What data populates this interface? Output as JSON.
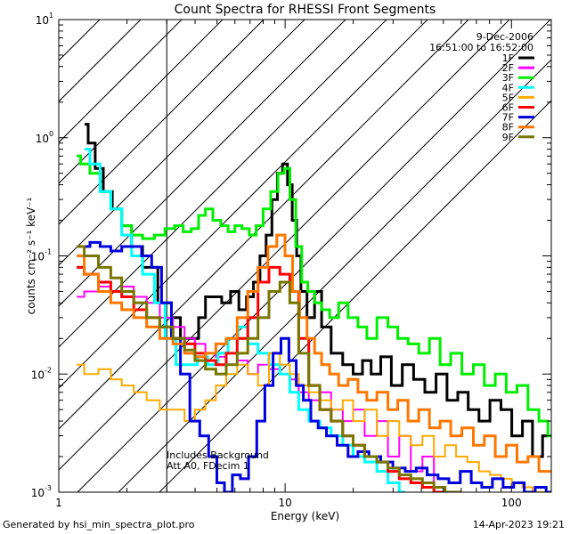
{
  "chart_data": {
    "type": "line",
    "title": "Count Spectra for RHESSI Front Segments",
    "xlabel": "Energy (keV)",
    "ylabel": "counts cm⁻² s⁻¹ keV⁻¹",
    "xscale": "log",
    "yscale": "log",
    "xlim": [
      1,
      150
    ],
    "ylim": [
      0.001,
      10
    ],
    "x_ticks": [
      {
        "value": 1,
        "label": "1"
      },
      {
        "value": 10,
        "label": "10"
      },
      {
        "value": 100,
        "label": "100"
      }
    ],
    "y_ticks": [
      {
        "value": 10,
        "label": "10",
        "exp": "1"
      },
      {
        "value": 1,
        "label": "10",
        "exp": "0"
      },
      {
        "value": 0.1,
        "label": "10",
        "exp": "-1"
      },
      {
        "value": 0.01,
        "label": "10",
        "exp": "-2"
      },
      {
        "value": 0.001,
        "label": "10",
        "exp": "-3"
      }
    ],
    "hatched_region": {
      "x_from": 1,
      "x_to": 3
    },
    "date": "9-Dec-2006",
    "time_range": "16:51:00 to 16:52:00",
    "annotation": [
      "Includes Background",
      "Att A0, FDecim 1"
    ],
    "legend_position": "top-right",
    "series": [
      {
        "name": "1F",
        "color": "#000000",
        "width": 3,
        "x": [
          1.3,
          1.4,
          1.5,
          1.65,
          1.8,
          2.0,
          2.2,
          2.5,
          3,
          3.3,
          3.6,
          4,
          4.3,
          4.6,
          5,
          5.5,
          6,
          6.5,
          7,
          7.5,
          8,
          8.5,
          9,
          9.5,
          10,
          10.5,
          11,
          11.5,
          12,
          13,
          14,
          15,
          17,
          19,
          21,
          23,
          25,
          28,
          31,
          35,
          39,
          44,
          49,
          55,
          61,
          68,
          76,
          85,
          95,
          106,
          118,
          130,
          145
        ],
        "y": [
          1.3,
          0.9,
          0.55,
          0.35,
          0.25,
          0.18,
          0.12,
          0.08,
          0.04,
          0.03,
          0.02,
          0.02,
          0.03,
          0.045,
          0.045,
          0.04,
          0.05,
          0.035,
          0.045,
          0.06,
          0.1,
          0.15,
          0.3,
          0.5,
          0.6,
          0.4,
          0.2,
          0.1,
          0.05,
          0.03,
          0.05,
          0.025,
          0.015,
          0.012,
          0.01,
          0.013,
          0.01,
          0.014,
          0.008,
          0.012,
          0.009,
          0.007,
          0.01,
          0.006,
          0.007,
          0.005,
          0.004,
          0.006,
          0.005,
          0.003,
          0.004,
          0.002,
          0.003
        ]
      },
      {
        "name": "2F",
        "color": "#ff00ff",
        "width": 2,
        "x": [
          1.2,
          1.4,
          1.6,
          1.8,
          2.0,
          2.3,
          2.6,
          3,
          3.4,
          3.8,
          4.2,
          4.7,
          5.2,
          5.8,
          6.5,
          7.2,
          8,
          9,
          10,
          11,
          12,
          13.5,
          15,
          17,
          19,
          21,
          24,
          27,
          30,
          34,
          38,
          43,
          48
        ],
        "y": [
          0.045,
          0.05,
          0.055,
          0.05,
          0.055,
          0.045,
          0.04,
          0.03,
          0.025,
          0.02,
          0.018,
          0.015,
          0.014,
          0.012,
          0.013,
          0.01,
          0.012,
          0.011,
          0.01,
          0.009,
          0.007,
          0.006,
          0.007,
          0.005,
          0.004,
          0.005,
          0.003,
          0.004,
          0.002,
          0.003,
          0.0015,
          0.002,
          0.001
        ]
      },
      {
        "name": "3F",
        "color": "#00ee00",
        "width": 3,
        "x": [
          1.2,
          1.3,
          1.45,
          1.6,
          1.8,
          2.0,
          2.2,
          2.5,
          2.8,
          3.1,
          3.4,
          3.7,
          4,
          4.3,
          4.6,
          5,
          5.4,
          5.8,
          6.2,
          6.7,
          7.2,
          7.7,
          8.3,
          9,
          9.6,
          10.2,
          10.8,
          11.5,
          12.2,
          13,
          14,
          15,
          16.5,
          18,
          20,
          22,
          24,
          27,
          30,
          33,
          37,
          41,
          46,
          51,
          57,
          64,
          72,
          80,
          90,
          100,
          112,
          125,
          140,
          150
        ],
        "y": [
          0.7,
          0.6,
          0.5,
          0.35,
          0.25,
          0.18,
          0.15,
          0.14,
          0.15,
          0.17,
          0.18,
          0.16,
          0.17,
          0.22,
          0.25,
          0.2,
          0.18,
          0.16,
          0.18,
          0.17,
          0.15,
          0.18,
          0.25,
          0.35,
          0.5,
          0.55,
          0.3,
          0.12,
          0.06,
          0.05,
          0.04,
          0.035,
          0.03,
          0.04,
          0.03,
          0.025,
          0.02,
          0.03,
          0.025,
          0.02,
          0.018,
          0.015,
          0.02,
          0.012,
          0.015,
          0.01,
          0.012,
          0.008,
          0.01,
          0.007,
          0.008,
          0.005,
          0.004,
          0.003
        ]
      },
      {
        "name": "4F",
        "color": "#00ffff",
        "width": 3,
        "x": [
          1.3,
          1.45,
          1.6,
          1.8,
          2.0,
          2.2,
          2.5,
          2.8,
          3.1,
          3.5,
          3.9,
          4.3,
          4.8,
          5.3,
          5.9,
          6.5,
          7.2,
          8,
          9,
          10,
          11,
          12,
          13.5,
          15,
          17,
          19,
          21,
          24,
          27,
          30,
          34
        ],
        "y": [
          0.8,
          0.6,
          0.35,
          0.25,
          0.15,
          0.1,
          0.07,
          0.04,
          0.02,
          0.012,
          0.012,
          0.014,
          0.012,
          0.015,
          0.02,
          0.025,
          0.018,
          0.015,
          0.012,
          0.01,
          0.007,
          0.005,
          0.004,
          0.0035,
          0.003,
          0.0025,
          0.002,
          0.0018,
          0.0015,
          0.0012,
          0.001
        ]
      },
      {
        "name": "5F",
        "color": "#ffaa00",
        "width": 2,
        "x": [
          1.2,
          1.4,
          1.6,
          1.8,
          2.0,
          2.3,
          2.6,
          3,
          3.4,
          3.8,
          4.2,
          4.7,
          5.2,
          5.8,
          6.5,
          7.2,
          8,
          9,
          10,
          11,
          12,
          13.5,
          15,
          17,
          19,
          21,
          24,
          27,
          30,
          34,
          38,
          43,
          48,
          54,
          60,
          68,
          76,
          85,
          95,
          106,
          118,
          130,
          145
        ],
        "y": [
          0.012,
          0.01,
          0.011,
          0.009,
          0.008,
          0.007,
          0.006,
          0.005,
          0.005,
          0.004,
          0.005,
          0.006,
          0.008,
          0.01,
          0.012,
          0.01,
          0.008,
          0.015,
          0.012,
          0.01,
          0.008,
          0.007,
          0.006,
          0.005,
          0.006,
          0.004,
          0.005,
          0.003,
          0.004,
          0.003,
          0.0025,
          0.003,
          0.002,
          0.0025,
          0.002,
          0.0018,
          0.0015,
          0.0014,
          0.0013,
          0.0012,
          0.0011,
          0.001,
          0.001
        ]
      },
      {
        "name": "6F",
        "color": "#ff0000",
        "width": 3,
        "x": [
          1.2,
          1.4,
          1.6,
          1.8,
          2.0,
          2.3,
          2.6,
          3,
          3.4,
          3.8,
          4.2,
          4.7,
          5.2,
          5.8,
          6.5,
          7.2,
          8,
          9,
          10,
          11,
          12,
          13.5,
          15,
          17,
          19,
          21,
          24,
          27,
          30,
          34,
          38,
          43,
          48,
          54,
          60
        ],
        "y": [
          0.08,
          0.07,
          0.06,
          0.05,
          0.045,
          0.035,
          0.03,
          0.025,
          0.02,
          0.018,
          0.015,
          0.013,
          0.012,
          0.015,
          0.02,
          0.03,
          0.06,
          0.08,
          0.07,
          0.05,
          0.02,
          0.008,
          0.005,
          0.004,
          0.003,
          0.0025,
          0.002,
          0.0018,
          0.0015,
          0.0013,
          0.0012,
          0.0011,
          0.001,
          0.001,
          0.001
        ]
      },
      {
        "name": "7F",
        "color": "#0000dd",
        "width": 3,
        "x": [
          1.2,
          1.3,
          1.45,
          1.6,
          1.8,
          2.0,
          2.2,
          2.45,
          2.7,
          3,
          3.3,
          3.6,
          4,
          4.4,
          4.8,
          5.2,
          5.6,
          6.1,
          6.6,
          7.2,
          7.8,
          8.5,
          9.2,
          10,
          10.8,
          11.6,
          12.5,
          13.5,
          14.5,
          16,
          18,
          20,
          22,
          25,
          28,
          32,
          36,
          40,
          45,
          50,
          56,
          63,
          70,
          78,
          87,
          97,
          108,
          120,
          135,
          150
        ],
        "y": [
          0.12,
          0.12,
          0.13,
          0.12,
          0.11,
          0.12,
          0.12,
          0.1,
          0.08,
          0.04,
          0.02,
          0.01,
          0.004,
          0.003,
          0.002,
          0.0012,
          0.001,
          0.0014,
          0.0013,
          0.002,
          0.004,
          0.008,
          0.015,
          0.02,
          0.013,
          0.008,
          0.006,
          0.004,
          0.0035,
          0.003,
          0.0025,
          0.002,
          0.0022,
          0.002,
          0.0018,
          0.0016,
          0.0015,
          0.0016,
          0.0014,
          0.0013,
          0.0012,
          0.0015,
          0.0012,
          0.0011,
          0.0013,
          0.0011,
          0.0012,
          0.001,
          0.0011,
          0.001
        ]
      },
      {
        "name": "8F",
        "color": "#ff7700",
        "width": 3,
        "x": [
          1.2,
          1.4,
          1.6,
          1.8,
          2.0,
          2.3,
          2.6,
          3,
          3.4,
          3.8,
          4.2,
          4.7,
          5.2,
          5.8,
          6.5,
          7.2,
          8,
          8.8,
          9.6,
          10.4,
          11.2,
          12,
          13,
          14,
          15,
          16.5,
          18,
          20,
          22,
          24,
          27,
          30,
          33,
          37,
          41,
          46,
          51,
          57,
          64,
          72,
          80,
          90,
          100,
          112,
          125,
          140,
          150
        ],
        "y": [
          0.1,
          0.07,
          0.05,
          0.04,
          0.035,
          0.03,
          0.025,
          0.02,
          0.018,
          0.015,
          0.014,
          0.015,
          0.018,
          0.02,
          0.03,
          0.05,
          0.08,
          0.12,
          0.15,
          0.1,
          0.05,
          0.03,
          0.02,
          0.015,
          0.012,
          0.01,
          0.008,
          0.009,
          0.007,
          0.006,
          0.007,
          0.005,
          0.006,
          0.004,
          0.005,
          0.0035,
          0.004,
          0.003,
          0.0035,
          0.0025,
          0.003,
          0.002,
          0.0025,
          0.0018,
          0.002,
          0.0015,
          0.0015
        ]
      },
      {
        "name": "9F",
        "color": "#777700",
        "width": 3,
        "x": [
          1.2,
          1.4,
          1.6,
          1.8,
          2.0,
          2.3,
          2.6,
          3,
          3.4,
          3.8,
          4.2,
          4.7,
          5.2,
          5.8,
          6.5,
          7.2,
          8,
          9,
          10,
          11,
          12,
          13.5,
          15,
          17,
          19,
          21,
          24,
          27,
          30,
          34,
          38,
          43,
          48,
          54,
          60
        ],
        "y": [
          0.12,
          0.1,
          0.08,
          0.065,
          0.05,
          0.04,
          0.03,
          0.025,
          0.02,
          0.016,
          0.013,
          0.011,
          0.01,
          0.012,
          0.015,
          0.02,
          0.03,
          0.05,
          0.06,
          0.04,
          0.015,
          0.008,
          0.005,
          0.004,
          0.003,
          0.0025,
          0.002,
          0.0018,
          0.0016,
          0.0014,
          0.0013,
          0.0012,
          0.0011,
          0.001,
          0.001
        ]
      }
    ]
  },
  "footer": {
    "generated_by": "Generated by hsi_min_spectra_plot.pro",
    "timestamp": "14-Apr-2023 19:21"
  }
}
